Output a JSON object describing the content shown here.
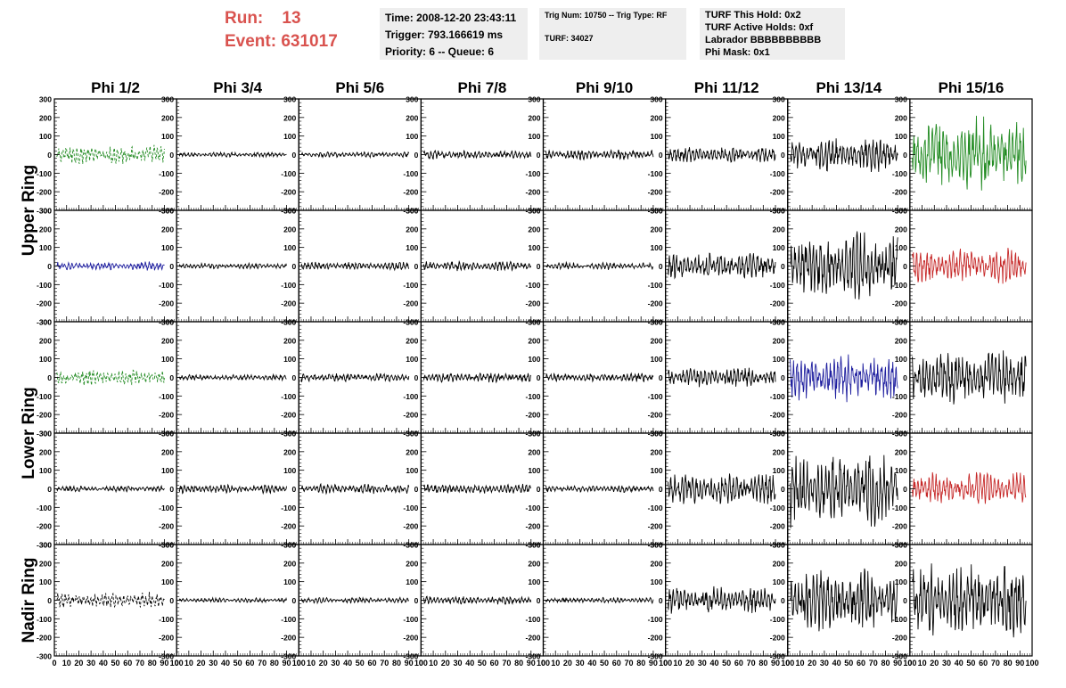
{
  "header": {
    "run_label": "Run:",
    "run_value": "13",
    "event_label": "Event:",
    "event_value": "631017",
    "time": "Time: 2008-12-20 23:43:11",
    "trigger": "Trigger: 793.166619 ms",
    "priority": "Priority: 6 -- Queue: 6",
    "trig_num": "Trig Num: 10750 -- Trig Type: RF",
    "turf": "TURF: 34027",
    "turf_this_hold": "TURF This Hold: 0x2",
    "turf_active_holds": "TURF Active Holds: 0xf",
    "labrador": "Labrador BBBBBBBBBB",
    "phi_mask": "Phi Mask: 0x1"
  },
  "chart_data": {
    "type": "line",
    "columns": [
      "Phi 1/2",
      "Phi 3/4",
      "Phi 5/6",
      "Phi 7/8",
      "Phi 9/10",
      "Phi 11/12",
      "Phi 13/14",
      "Phi 15/16"
    ],
    "ring_labels": [
      "Upper Ring",
      "Lower Ring",
      "Nadir Ring"
    ],
    "rows": 5,
    "ring_rows": [
      [
        0,
        1
      ],
      [
        2,
        3
      ],
      [
        4
      ]
    ],
    "xlim": [
      0,
      100
    ],
    "ylim": [
      -300,
      300
    ],
    "y_ticks": [
      300,
      200,
      100,
      0,
      -100,
      -200,
      -300
    ],
    "x_ticks": [
      0,
      10,
      20,
      30,
      40,
      50,
      60,
      70,
      80,
      90,
      100
    ],
    "x_tick_labels": [
      "0",
      "10",
      "20",
      "30",
      "40",
      "50",
      "60",
      "70",
      "80",
      "90",
      "100"
    ],
    "x_tick_labels_last_column": [
      "0",
      "10",
      "20",
      "30",
      "40",
      "50",
      "60",
      "70",
      "80",
      "90",
      "100"
    ],
    "series_colors": {
      "black": "#000000",
      "green": "#228b22",
      "blue": "#1f1f9f",
      "red": "#c62828"
    },
    "panels": [
      [
        {
          "color": "green",
          "amp": 50,
          "dashed": true
        },
        {
          "color": "black",
          "amp": 12
        },
        {
          "color": "black",
          "amp": 14
        },
        {
          "color": "black",
          "amp": 22
        },
        {
          "color": "black",
          "amp": 25
        },
        {
          "color": "black",
          "amp": 40
        },
        {
          "color": "black",
          "amp": 90
        },
        {
          "color": "green",
          "amp": 190
        }
      ],
      [
        {
          "color": "blue",
          "amp": 22
        },
        {
          "color": "black",
          "amp": 15
        },
        {
          "color": "black",
          "amp": 20
        },
        {
          "color": "black",
          "amp": 25
        },
        {
          "color": "black",
          "amp": 18
        },
        {
          "color": "black",
          "amp": 70
        },
        {
          "color": "black",
          "amp": 170
        },
        {
          "color": "red",
          "amp": 90
        }
      ],
      [
        {
          "color": "green",
          "amp": 40,
          "dashed": true
        },
        {
          "color": "black",
          "amp": 15
        },
        {
          "color": "black",
          "amp": 22
        },
        {
          "color": "black",
          "amp": 25
        },
        {
          "color": "black",
          "amp": 22
        },
        {
          "color": "black",
          "amp": 50
        },
        {
          "color": "blue",
          "amp": 120
        },
        {
          "color": "black",
          "amp": 150
        }
      ],
      [
        {
          "color": "black",
          "amp": 15
        },
        {
          "color": "black",
          "amp": 22
        },
        {
          "color": "black",
          "amp": 25
        },
        {
          "color": "black",
          "amp": 25
        },
        {
          "color": "black",
          "amp": 18
        },
        {
          "color": "black",
          "amp": 80
        },
        {
          "color": "black",
          "amp": 190
        },
        {
          "color": "red",
          "amp": 85
        }
      ],
      [
        {
          "color": "black",
          "amp": 40,
          "dashed": true
        },
        {
          "color": "black",
          "amp": 12
        },
        {
          "color": "black",
          "amp": 14
        },
        {
          "color": "black",
          "amp": 22
        },
        {
          "color": "black",
          "amp": 14
        },
        {
          "color": "black",
          "amp": 70
        },
        {
          "color": "black",
          "amp": 160
        },
        {
          "color": "black",
          "amp": 190
        }
      ]
    ]
  }
}
